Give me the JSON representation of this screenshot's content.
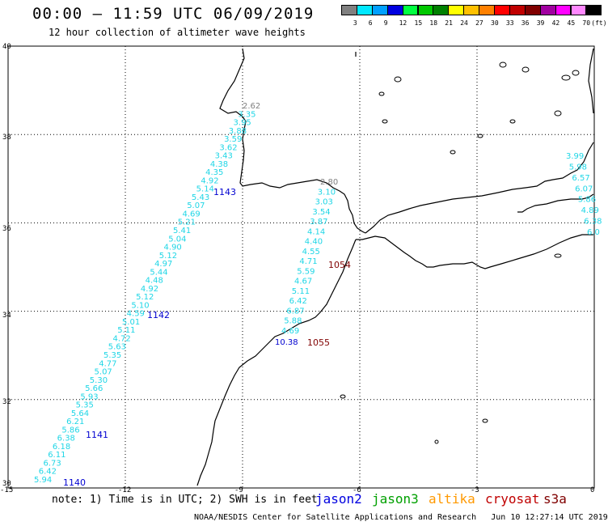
{
  "header": {
    "title": "00:00 – 11:59 UTC 06/09/2019",
    "subtitle": "12 hour collection of altimeter wave heights"
  },
  "legend": {
    "labels": [
      "3",
      "6",
      "9",
      "12",
      "15",
      "18",
      "21",
      "24",
      "27",
      "30",
      "33",
      "36",
      "39",
      "42",
      "45",
      "70"
    ],
    "unit": "(ft)",
    "colors": [
      "#808080",
      "#00e8ff",
      "#00a0ff",
      "#0000e0",
      "#00ff40",
      "#00c800",
      "#008000",
      "#ffff00",
      "#ffc000",
      "#ff8000",
      "#ff0000",
      "#c00000",
      "#800000",
      "#a000a0",
      "#ff00ff",
      "#ff88ff",
      "#000000"
    ]
  },
  "axes": {
    "lat_labels": [
      "40",
      "38",
      "36",
      "34",
      "32",
      "30"
    ],
    "lon_labels": [
      "-15",
      "-12",
      "-9",
      "-6",
      "-3",
      "0"
    ]
  },
  "chart_data": {
    "type": "scatter",
    "x_range": [
      -15,
      0
    ],
    "y_range": [
      30,
      40
    ],
    "tracks": [
      {
        "satellite": "jason2",
        "time": "1143",
        "lat": 36.95,
        "lon": -9.05
      },
      {
        "satellite": "jason2",
        "time": "1142",
        "lat": 34.0,
        "lon": -11.3
      },
      {
        "satellite": "jason2",
        "time": "1141",
        "lat": 31.3,
        "lon": -12.7
      },
      {
        "satellite": "jason2",
        "time": "1140",
        "lat": 30.15,
        "lon": -13.7
      },
      {
        "satellite": "cryosat",
        "time": "1054",
        "lat": 35.4,
        "lon": -6.4
      },
      {
        "satellite": "cryosat",
        "time": "1055",
        "lat": 33.3,
        "lon": -6.9
      },
      {
        "satellite": "jason2",
        "time": "10.38",
        "lat": 33.3,
        "lon": -7.8
      }
    ],
    "track1_values": [
      "2.62",
      "3.35",
      "3.95",
      "3.88",
      "3.59",
      "3.62",
      "3.43",
      "4.38",
      "4.35",
      "4.92",
      "5.14",
      "5.43",
      "5.07",
      "4.69",
      "5.21",
      "5.41",
      "5.04",
      "4.90",
      "5.12",
      "4.97",
      "5.44",
      "4.48",
      "4.92",
      "5.12",
      "5.10",
      "4.59",
      "5.01",
      "5.11",
      "4.72",
      "5.63",
      "5.35",
      "4.77",
      "5.07",
      "5.30",
      "5.66",
      "5.93",
      "5.35",
      "5.64",
      "6.21",
      "5.86",
      "6.38",
      "6.18",
      "6.11",
      "6.73",
      "6.42",
      "5.94"
    ],
    "track2_values": [
      "2.80",
      "3.10",
      "3.03",
      "3.54",
      "3.87",
      "4.14",
      "4.40",
      "4.55",
      "4.71",
      "5.59",
      "4.67",
      "5.11",
      "6.42",
      "6.87",
      "5.88",
      "4.69"
    ],
    "track3_values": [
      "3.99",
      "5.98",
      "6.57",
      "6.07",
      "5.86",
      "4.89",
      "6.38",
      "6.0"
    ]
  },
  "note": {
    "text": "note: 1) Time is in UTC; 2) SWH is in feet"
  },
  "satellites": [
    {
      "name": "jason2",
      "color": "#0000e0"
    },
    {
      "name": "jason3",
      "color": "#00a000"
    },
    {
      "name": "altika",
      "color": "#ff9900"
    },
    {
      "name": "cryosat",
      "color": "#c00000"
    },
    {
      "name": "s3a",
      "color": "#800000"
    }
  ],
  "footer": {
    "credit": "NOAA/NESDIS Center for Satellite Applications and Research",
    "timestamp": "Jun 10 12:27:14 UTC 2019"
  }
}
